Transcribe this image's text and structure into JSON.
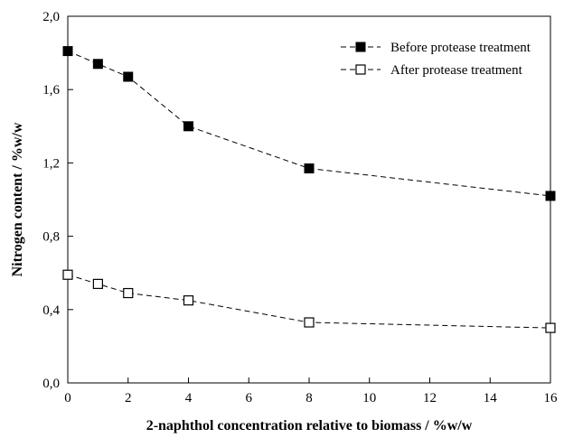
{
  "chart_data": {
    "type": "line",
    "title": "",
    "xlabel": "2-naphthol concentration relative to biomass / %w/w",
    "ylabel": "Nitrogen content / %w/w",
    "xlim": [
      0,
      16
    ],
    "ylim": [
      0,
      2.0
    ],
    "xticks": [
      "0",
      "2",
      "4",
      "6",
      "8",
      "10",
      "12",
      "14",
      "16"
    ],
    "yticks": [
      "0,0",
      "0,4",
      "0,8",
      "1,2",
      "1,6",
      "2,0"
    ],
    "grid": false,
    "legend_position": "top-right",
    "series": [
      {
        "name": "Before protease treatment",
        "marker": "filled-square",
        "line_style": "dashed",
        "x": [
          0,
          1,
          2,
          4,
          8,
          16
        ],
        "y": [
          1.81,
          1.74,
          1.67,
          1.4,
          1.17,
          1.02
        ]
      },
      {
        "name": "After protease treatment",
        "marker": "open-square",
        "line_style": "dashed",
        "x": [
          0,
          1,
          2,
          4,
          8,
          16
        ],
        "y": [
          0.59,
          0.54,
          0.49,
          0.45,
          0.33,
          0.3
        ]
      }
    ]
  }
}
